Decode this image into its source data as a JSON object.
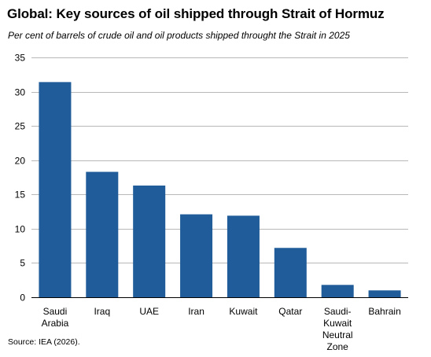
{
  "title": "Global: Key sources of oil shipped through Strait of Hormuz",
  "subtitle": "Per cent of barrels  of crude oil and oil products shipped throught the Strait in 2025",
  "source": "Source: IEA (2026).",
  "colors": {
    "bar": "#1F5C99",
    "grid": "#B8B8B8",
    "axis": "#000000"
  },
  "chart_data": {
    "type": "bar",
    "categories": [
      "Saudi Arabia",
      "Iraq",
      "UAE",
      "Iran",
      "Kuwait",
      "Qatar",
      "Saudi-Kuwait Neutral Zone",
      "Bahrain"
    ],
    "category_lines": [
      [
        "Saudi",
        "Arabia"
      ],
      [
        "Iraq"
      ],
      [
        "UAE"
      ],
      [
        "Iran"
      ],
      [
        "Kuwait"
      ],
      [
        "Qatar"
      ],
      [
        "Saudi-",
        "Kuwait",
        "Neutral",
        "Zone"
      ],
      [
        "Bahrain"
      ]
    ],
    "values": [
      31.4,
      18.3,
      16.3,
      12.1,
      11.9,
      7.2,
      1.8,
      1.0
    ],
    "ylim": [
      0,
      35
    ],
    "yticks": [
      0,
      5,
      10,
      15,
      20,
      25,
      30,
      35
    ],
    "grid": true,
    "legend": "none"
  }
}
